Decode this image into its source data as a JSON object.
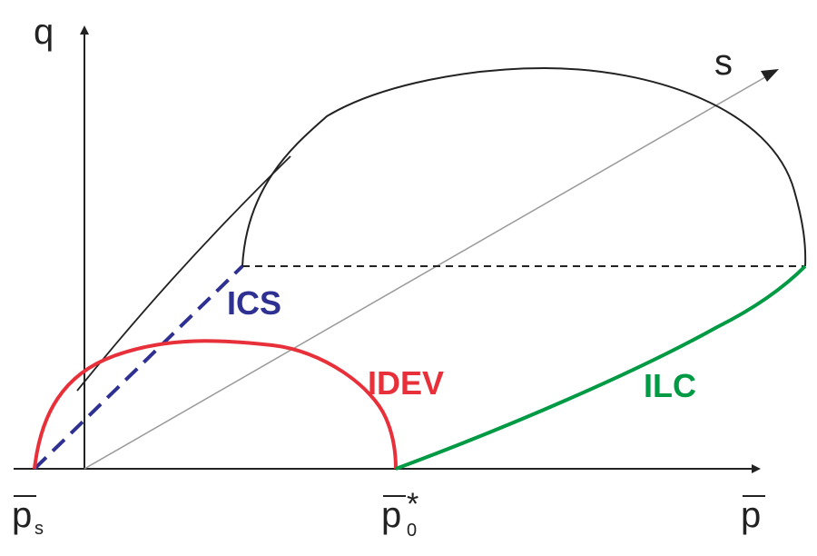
{
  "axes": {
    "q_label": "q",
    "p_label": "p",
    "s_label": "s"
  },
  "points": {
    "ps_main": "p",
    "ps_sub": "s",
    "p0_main": "p",
    "p0_sub": "0",
    "p0_sup": "*"
  },
  "curves": {
    "ics": {
      "label": "ICS",
      "color": "#2e3192"
    },
    "idev": {
      "label": "IDEV",
      "color": "#e8303a"
    },
    "ilc": {
      "label": "ILC",
      "color": "#009a44"
    }
  },
  "colors": {
    "axis": "#222222",
    "outline": "#222222",
    "guide": "#9a9a9a"
  }
}
